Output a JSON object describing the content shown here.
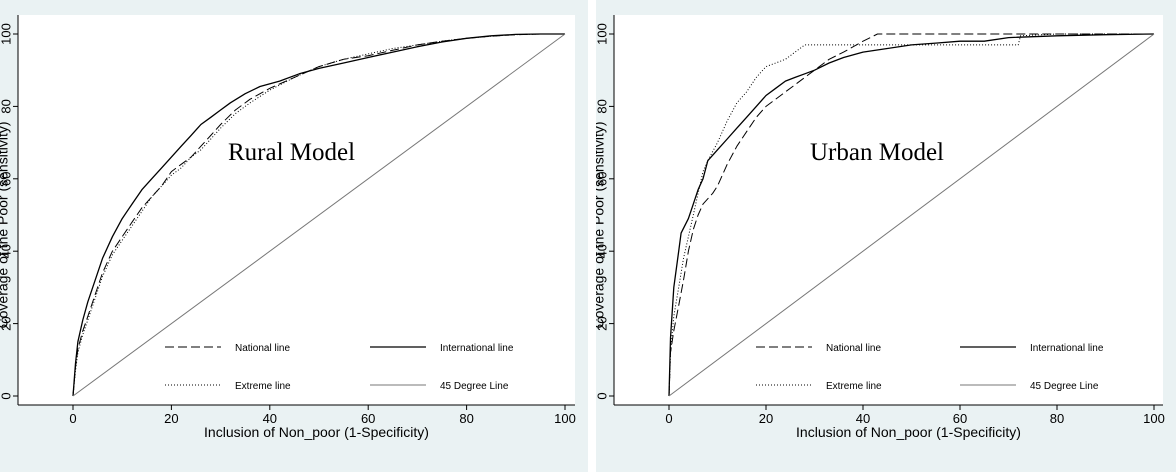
{
  "chart_data": [
    {
      "type": "line",
      "annotation": "Rural Model",
      "xlabel": "Inclusion of Non_poor (1-Specificity)",
      "ylabel": "Coverage of the Poor (sensitivity)",
      "xlim": [
        0,
        100
      ],
      "ylim": [
        0,
        100
      ],
      "xticks": [
        "0",
        "20",
        "40",
        "60",
        "80",
        "100"
      ],
      "yticks": [
        "0",
        "20",
        "40",
        "60",
        "80",
        "100"
      ],
      "grid": false,
      "legend_position": "bottom-center",
      "series": [
        {
          "name": "National line",
          "style": "dashed",
          "points": [
            [
              0,
              0
            ],
            [
              0.5,
              8
            ],
            [
              1,
              13
            ],
            [
              2,
              18
            ],
            [
              3,
              22
            ],
            [
              4,
              26
            ],
            [
              5,
              30
            ],
            [
              6,
              34
            ],
            [
              7,
              37
            ],
            [
              8,
              40
            ],
            [
              10,
              44
            ],
            [
              12,
              48
            ],
            [
              14,
              52
            ],
            [
              16,
              55
            ],
            [
              18,
              58
            ],
            [
              20,
              62
            ],
            [
              22,
              64
            ],
            [
              24,
              66
            ],
            [
              26,
              69
            ],
            [
              28,
              72
            ],
            [
              30,
              75
            ],
            [
              33,
              79
            ],
            [
              36,
              82
            ],
            [
              40,
              85
            ],
            [
              45,
              88
            ],
            [
              50,
              91
            ],
            [
              55,
              93
            ],
            [
              60,
              94
            ],
            [
              65,
              95.5
            ],
            [
              70,
              97
            ],
            [
              75,
              98
            ],
            [
              80,
              98.8
            ],
            [
              85,
              99.4
            ],
            [
              90,
              99.8
            ],
            [
              95,
              100
            ],
            [
              100,
              100
            ]
          ]
        },
        {
          "name": "International line",
          "style": "solid",
          "points": [
            [
              0,
              0
            ],
            [
              0.5,
              9
            ],
            [
              1,
              15
            ],
            [
              2,
              21
            ],
            [
              3,
              26
            ],
            [
              4,
              30
            ],
            [
              5,
              34
            ],
            [
              6,
              38
            ],
            [
              7,
              41
            ],
            [
              8,
              44
            ],
            [
              10,
              49
            ],
            [
              12,
              53
            ],
            [
              14,
              57
            ],
            [
              16,
              60
            ],
            [
              18,
              63
            ],
            [
              20,
              66
            ],
            [
              22,
              69
            ],
            [
              24,
              72
            ],
            [
              26,
              75
            ],
            [
              28,
              77
            ],
            [
              30,
              79
            ],
            [
              32,
              81
            ],
            [
              35,
              83.5
            ],
            [
              38,
              85.5
            ],
            [
              42,
              87
            ],
            [
              46,
              89
            ],
            [
              50,
              90.5
            ],
            [
              55,
              92
            ],
            [
              60,
              93.5
            ],
            [
              65,
              95
            ],
            [
              70,
              96.5
            ],
            [
              75,
              97.8
            ],
            [
              80,
              98.8
            ],
            [
              85,
              99.5
            ],
            [
              90,
              99.9
            ],
            [
              95,
              100
            ],
            [
              100,
              100
            ]
          ]
        },
        {
          "name": "Extreme line",
          "style": "dotted",
          "points": [
            [
              0,
              0
            ],
            [
              0.5,
              7
            ],
            [
              1,
              12
            ],
            [
              2,
              17
            ],
            [
              3,
              21
            ],
            [
              4,
              25
            ],
            [
              5,
              29
            ],
            [
              6,
              33
            ],
            [
              7,
              36
            ],
            [
              8,
              39
            ],
            [
              10,
              43
            ],
            [
              12,
              47
            ],
            [
              14,
              51
            ],
            [
              16,
              55
            ],
            [
              18,
              58
            ],
            [
              20,
              61
            ],
            [
              22,
              63
            ],
            [
              24,
              66
            ],
            [
              26,
              68
            ],
            [
              28,
              71
            ],
            [
              30,
              74
            ],
            [
              33,
              78
            ],
            [
              36,
              81
            ],
            [
              40,
              84.5
            ],
            [
              45,
              88
            ],
            [
              50,
              91
            ],
            [
              55,
              93
            ],
            [
              60,
              94.5
            ],
            [
              65,
              96
            ],
            [
              70,
              97
            ],
            [
              75,
              98
            ],
            [
              80,
              98.8
            ],
            [
              85,
              99.4
            ],
            [
              90,
              99.8
            ],
            [
              95,
              100
            ],
            [
              100,
              100
            ]
          ]
        },
        {
          "name": "45 Degree Line",
          "style": "thin",
          "points": [
            [
              0,
              0
            ],
            [
              100,
              100
            ]
          ]
        }
      ]
    },
    {
      "type": "line",
      "annotation": "Urban Model",
      "xlabel": "Inclusion of Non_poor (1-Specificity)",
      "ylabel": "Coverage of the Poor (sensitivity)",
      "xlim": [
        0,
        100
      ],
      "ylim": [
        0,
        100
      ],
      "xticks": [
        "0",
        "20",
        "40",
        "60",
        "80",
        "100"
      ],
      "yticks": [
        "0",
        "20",
        "40",
        "60",
        "80",
        "100"
      ],
      "grid": false,
      "legend_position": "bottom-center",
      "series": [
        {
          "name": "National line",
          "style": "dashed",
          "points": [
            [
              0,
              0
            ],
            [
              0.3,
              12
            ],
            [
              1,
              18
            ],
            [
              2,
              25
            ],
            [
              3,
              32
            ],
            [
              4,
              40
            ],
            [
              5,
              46
            ],
            [
              6,
              50
            ],
            [
              7,
              53
            ],
            [
              9,
              56
            ],
            [
              10,
              58
            ],
            [
              12,
              64
            ],
            [
              14,
              69
            ],
            [
              16,
              73
            ],
            [
              18,
              77
            ],
            [
              20,
              80
            ],
            [
              22,
              82
            ],
            [
              24,
              84
            ],
            [
              26,
              86
            ],
            [
              28,
              88
            ],
            [
              30,
              90
            ],
            [
              33,
              93
            ],
            [
              36,
              95
            ],
            [
              40,
              98
            ],
            [
              43,
              100
            ],
            [
              50,
              100
            ],
            [
              60,
              100
            ],
            [
              70,
              100
            ],
            [
              80,
              100
            ],
            [
              90,
              100
            ],
            [
              100,
              100
            ]
          ]
        },
        {
          "name": "International line",
          "style": "solid",
          "points": [
            [
              0,
              0
            ],
            [
              0.3,
              16
            ],
            [
              1,
              30
            ],
            [
              2,
              40
            ],
            [
              2.5,
              45
            ],
            [
              4,
              49
            ],
            [
              5,
              53
            ],
            [
              6,
              57
            ],
            [
              7,
              60
            ],
            [
              8,
              65
            ],
            [
              10,
              68
            ],
            [
              12,
              71
            ],
            [
              14,
              74
            ],
            [
              16,
              77
            ],
            [
              18,
              80
            ],
            [
              20,
              83
            ],
            [
              22,
              85
            ],
            [
              24,
              87
            ],
            [
              26,
              88
            ],
            [
              28,
              89
            ],
            [
              30,
              90
            ],
            [
              33,
              92
            ],
            [
              36,
              93.5
            ],
            [
              40,
              95
            ],
            [
              45,
              96
            ],
            [
              50,
              97
            ],
            [
              55,
              97.5
            ],
            [
              60,
              98
            ],
            [
              65,
              98
            ],
            [
              70,
              99
            ],
            [
              80,
              99.5
            ],
            [
              90,
              99.8
            ],
            [
              100,
              100
            ]
          ]
        },
        {
          "name": "Extreme line",
          "style": "dotted",
          "points": [
            [
              0,
              0
            ],
            [
              0.3,
              12
            ],
            [
              1,
              22
            ],
            [
              2,
              30
            ],
            [
              3,
              38
            ],
            [
              4,
              44
            ],
            [
              5,
              50
            ],
            [
              6,
              56
            ],
            [
              7,
              62
            ],
            [
              8,
              65
            ],
            [
              10,
              70
            ],
            [
              12,
              76
            ],
            [
              14,
              81
            ],
            [
              16,
              84
            ],
            [
              18,
              88
            ],
            [
              20,
              91
            ],
            [
              22,
              92
            ],
            [
              24,
              93
            ],
            [
              26,
              95
            ],
            [
              28,
              97
            ],
            [
              30,
              97
            ],
            [
              40,
              97
            ],
            [
              50,
              97
            ],
            [
              60,
              97
            ],
            [
              65,
              97
            ],
            [
              70,
              97
            ],
            [
              72,
              97
            ],
            [
              72.5,
              99.5
            ],
            [
              80,
              100
            ],
            [
              90,
              100
            ],
            [
              100,
              100
            ]
          ]
        },
        {
          "name": "45 Degree Line",
          "style": "thin",
          "points": [
            [
              0,
              0
            ],
            [
              100,
              100
            ]
          ]
        }
      ]
    }
  ]
}
